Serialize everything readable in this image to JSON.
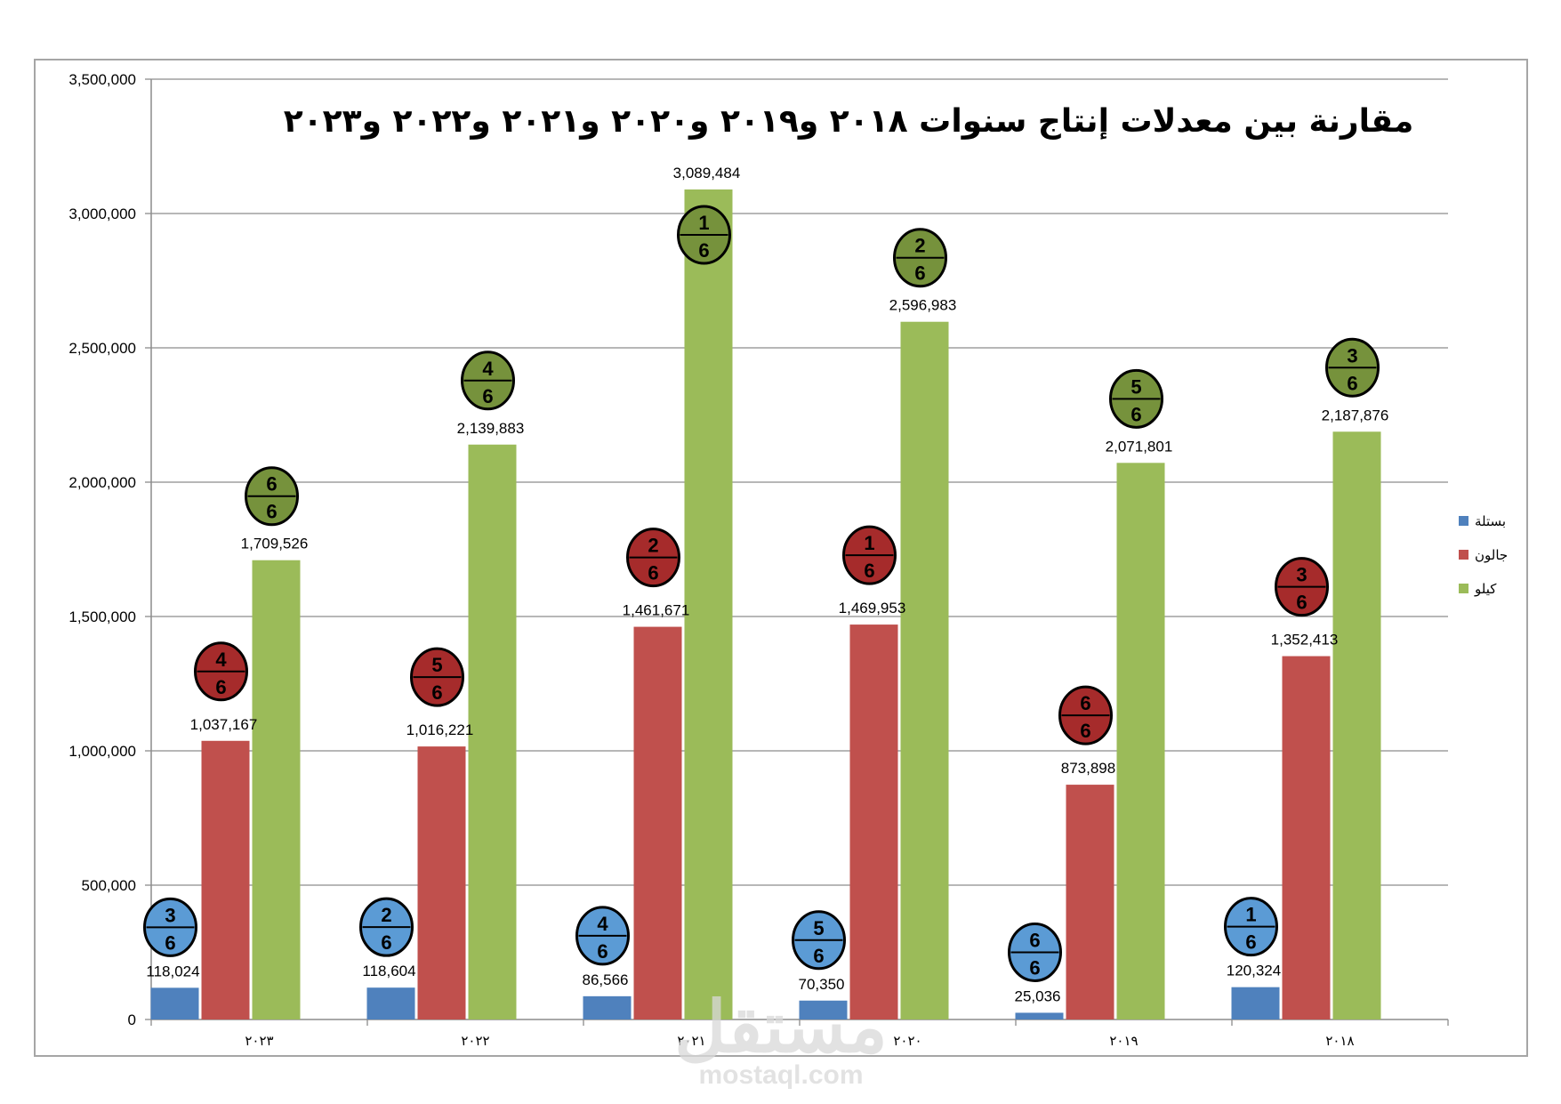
{
  "chart_data": {
    "type": "bar",
    "title": "مقارنة بين معدلات إنتاج سنوات ٢٠١٨ و٢٠١٩ و٢٠٢٠ و٢٠٢١ و٢٠٢٢ و٢٠٢٣",
    "categories": [
      "٢٠٢٣",
      "٢٠٢٢",
      "٢٠٢١",
      "٢٠٢٠",
      "٢٠١٩",
      "٢٠١٨"
    ],
    "ylim": [
      0,
      3500000
    ],
    "yticks": [
      0,
      500000,
      1000000,
      1500000,
      2000000,
      2500000,
      3000000,
      3500000
    ],
    "ytick_labels": [
      "0",
      "500,000",
      "1,000,000",
      "1,500,000",
      "2,000,000",
      "2,500,000",
      "3,000,000",
      "3,500,000"
    ],
    "grid": true,
    "legend_position": "right",
    "series": [
      {
        "name": "بستلة",
        "color": "#4f81bd",
        "badge_color": "#5b9bd5",
        "values": [
          118024,
          118604,
          86566,
          70350,
          25036,
          120324
        ],
        "labels": [
          "118,024",
          "118,604",
          "86,566",
          "70,350",
          "25,036",
          "120,324"
        ],
        "ranks": [
          "3",
          "2",
          "4",
          "5",
          "6",
          "1"
        ]
      },
      {
        "name": "جالون",
        "color": "#c0504d",
        "badge_color": "#a62b2b",
        "values": [
          1037167,
          1016221,
          1461671,
          1469953,
          873898,
          1352413
        ],
        "labels": [
          "1,037,167",
          "1,016,221",
          "1,461,671",
          "1,469,953",
          "873,898",
          "1,352,413"
        ],
        "ranks": [
          "4",
          "5",
          "2",
          "1",
          "6",
          "3"
        ]
      },
      {
        "name": "كيلو",
        "color": "#9bbb59",
        "badge_color": "#76923c",
        "values": [
          1709526,
          2139883,
          3089484,
          2596983,
          2071801,
          2187876
        ],
        "labels": [
          "1,709,526",
          "2,139,883",
          "3,089,484",
          "2,596,983",
          "2,071,801",
          "2,187,876"
        ],
        "ranks": [
          "6",
          "4",
          "1",
          "2",
          "5",
          "3"
        ]
      }
    ],
    "rank_denominator": "6"
  },
  "watermark": {
    "logo_text": "مستقل",
    "site_text": "mostaql.com"
  }
}
